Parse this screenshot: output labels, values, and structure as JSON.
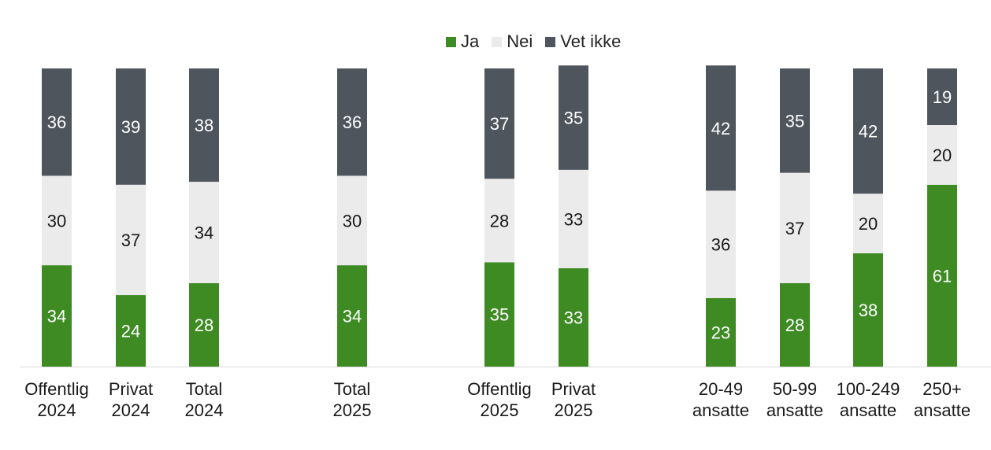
{
  "chart_data": {
    "type": "bar",
    "stacked": true,
    "title": "",
    "xlabel": "",
    "ylabel": "",
    "ylim": [
      0,
      100
    ],
    "grid": false,
    "legend_position": "top-center",
    "categories": [
      [
        "Offentlig",
        "2024"
      ],
      [
        "Privat",
        "2024"
      ],
      [
        "Total",
        "2024"
      ],
      [
        "Total",
        "2025"
      ],
      [
        "Offentlig",
        "2025"
      ],
      [
        "Privat",
        "2025"
      ],
      [
        "20-49",
        "ansatte"
      ],
      [
        "50-99",
        "ansatte"
      ],
      [
        "100-249",
        "ansatte"
      ],
      [
        "250+",
        "ansatte"
      ]
    ],
    "series": [
      {
        "name": "Ja",
        "color": "#3e8b24",
        "label_color": "#ffffff",
        "values": [
          34,
          24,
          28,
          34,
          35,
          33,
          23,
          28,
          38,
          61
        ]
      },
      {
        "name": "Nei",
        "color": "#ebebeb",
        "label_color": "#1a1a1a",
        "values": [
          30,
          37,
          34,
          30,
          28,
          33,
          36,
          37,
          20,
          20
        ]
      },
      {
        "name": "Vet ikke",
        "color": "#4f555c",
        "label_color": "#ffffff",
        "values": [
          36,
          39,
          38,
          36,
          37,
          35,
          42,
          35,
          42,
          19
        ]
      }
    ]
  }
}
